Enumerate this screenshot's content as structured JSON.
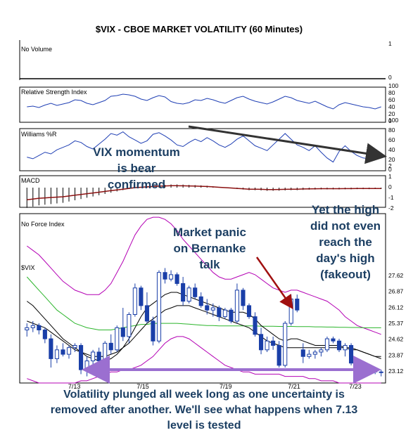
{
  "chart_data": {
    "type": "candlestick",
    "title": "$VIX - CBOE MARKET VOLATILITY (60 Minutes)",
    "panels": {
      "volume": {
        "label": "No Volume",
        "ticks": [
          "1",
          "0"
        ]
      },
      "rsi": {
        "label": "Relative Strength Index",
        "ticks": [
          "100",
          "80",
          "60",
          "40",
          "20",
          "0"
        ],
        "values": [
          40,
          42,
          38,
          45,
          50,
          44,
          48,
          52,
          60,
          58,
          50,
          46,
          52,
          58,
          70,
          72,
          76,
          74,
          70,
          62,
          58,
          66,
          72,
          68,
          55,
          50,
          48,
          52,
          60,
          58,
          64,
          60,
          54,
          50,
          58,
          66,
          70,
          62,
          56,
          52,
          48,
          54,
          62,
          70,
          66,
          58,
          54,
          50,
          56,
          48,
          40,
          34,
          46,
          52,
          48,
          44,
          40,
          38,
          34,
          40
        ]
      },
      "williams": {
        "label": "Williams %R",
        "ticks": [
          "100",
          "80",
          "60",
          "40",
          "20",
          "0"
        ],
        "values": [
          30,
          26,
          34,
          42,
          38,
          48,
          54,
          60,
          70,
          66,
          56,
          50,
          62,
          74,
          88,
          84,
          92,
          80,
          72,
          64,
          70,
          86,
          90,
          82,
          72,
          60,
          56,
          66,
          74,
          68,
          78,
          70,
          60,
          54,
          62,
          74,
          82,
          70,
          58,
          52,
          46,
          60,
          74,
          88,
          74,
          60,
          54,
          46,
          58,
          42,
          28,
          18,
          44,
          58,
          44,
          34,
          28,
          26,
          24,
          30
        ]
      },
      "macd": {
        "label": "MACD",
        "ticks": [
          "2",
          "1",
          "0",
          "-1",
          "-2"
        ],
        "hist": [
          -1.6,
          -1.5,
          -1.4,
          -1.35,
          -1.3,
          -1.25,
          -1.2,
          -1.1,
          -1.0,
          -0.9,
          -0.8,
          -0.7,
          -0.6,
          -0.5,
          -0.4,
          -0.3,
          -0.2,
          -0.1,
          0.0,
          0.05,
          0.1,
          0.15,
          0.2,
          0.22,
          0.25,
          0.25,
          0.24,
          0.22,
          0.2,
          0.18,
          0.15,
          0.1,
          0.05,
          0.0,
          -0.05,
          -0.1,
          -0.15,
          -0.2,
          -0.2,
          -0.22,
          -0.25,
          -0.25,
          -0.24,
          -0.22,
          -0.2,
          -0.2,
          -0.18,
          -0.16,
          -0.15,
          -0.14,
          -0.14,
          -0.14,
          -0.14,
          -0.13,
          -0.13,
          -0.12,
          -0.12,
          -0.12,
          -0.11,
          -0.11
        ]
      },
      "force": {
        "label": "No Force Index"
      }
    },
    "price": {
      "label": "$VIX",
      "ylim": [
        22.8,
        28.3
      ],
      "yticks": [
        "27.62",
        "26.87",
        "26.12",
        "25.37",
        "24.62",
        "23.87",
        "23.12"
      ],
      "xticks": [
        "7/13",
        "7/15",
        "7/19",
        "7/21",
        "7/23"
      ],
      "ohlc": [
        [
          25.2,
          25.5,
          24.9,
          25.3
        ],
        [
          25.3,
          25.6,
          25.1,
          25.4
        ],
        [
          25.4,
          25.5,
          25.0,
          25.2
        ],
        [
          25.2,
          25.3,
          24.6,
          24.8
        ],
        [
          24.8,
          25.0,
          23.5,
          23.9
        ],
        [
          23.9,
          24.5,
          23.7,
          24.3
        ],
        [
          24.3,
          24.6,
          24.0,
          24.1
        ],
        [
          24.1,
          24.5,
          23.9,
          24.4
        ],
        [
          24.4,
          24.6,
          24.2,
          24.5
        ],
        [
          24.5,
          24.6,
          23.2,
          23.4
        ],
        [
          23.4,
          24.0,
          23.1,
          23.8
        ],
        [
          23.8,
          24.3,
          23.6,
          24.2
        ],
        [
          24.2,
          24.4,
          23.6,
          23.8
        ],
        [
          23.8,
          24.7,
          23.7,
          24.6
        ],
        [
          24.6,
          25.0,
          24.1,
          24.3
        ],
        [
          24.3,
          25.4,
          24.2,
          25.3
        ],
        [
          25.3,
          26.2,
          24.7,
          24.9
        ],
        [
          24.9,
          26.0,
          24.6,
          25.9
        ],
        [
          25.9,
          27.3,
          25.8,
          27.1
        ],
        [
          27.1,
          27.2,
          26.1,
          26.3
        ],
        [
          26.3,
          26.9,
          25.5,
          25.6
        ],
        [
          25.6,
          25.8,
          24.5,
          24.7
        ],
        [
          24.7,
          27.9,
          24.6,
          27.8
        ],
        [
          27.8,
          28.0,
          27.3,
          27.5
        ],
        [
          27.5,
          27.9,
          27.4,
          27.7
        ],
        [
          27.7,
          27.8,
          27.2,
          27.3
        ],
        [
          27.3,
          27.6,
          26.3,
          26.5
        ],
        [
          26.5,
          27.2,
          26.4,
          27.1
        ],
        [
          27.1,
          27.3,
          26.6,
          26.7
        ],
        [
          26.7,
          26.9,
          26.2,
          26.3
        ],
        [
          26.3,
          26.6,
          25.9,
          26.1
        ],
        [
          26.1,
          26.4,
          25.8,
          26.2
        ],
        [
          26.2,
          26.3,
          25.6,
          25.8
        ],
        [
          25.8,
          26.2,
          25.7,
          26.1
        ],
        [
          26.1,
          26.2,
          25.5,
          25.6
        ],
        [
          25.6,
          27.3,
          25.5,
          27.0
        ],
        [
          27.0,
          27.1,
          26.1,
          26.3
        ],
        [
          26.3,
          26.4,
          25.7,
          25.8
        ],
        [
          25.8,
          26.0,
          24.9,
          25.0
        ],
        [
          25.0,
          25.3,
          24.1,
          24.3
        ],
        [
          24.3,
          24.9,
          24.2,
          24.7
        ],
        [
          24.7,
          24.9,
          24.3,
          24.5
        ],
        [
          24.5,
          24.7,
          23.5,
          23.6
        ],
        [
          23.6,
          25.6,
          23.5,
          25.5
        ],
        [
          25.5,
          26.8,
          25.4,
          26.6
        ],
        [
          26.6,
          26.8,
          26.0,
          26.1
        ],
        [
          24.3,
          24.6,
          23.7,
          24.0
        ],
        [
          24.0,
          24.3,
          23.9,
          24.1
        ],
        [
          24.1,
          24.3,
          23.9,
          24.2
        ],
        [
          24.2,
          24.4,
          24.0,
          24.3
        ],
        [
          24.3,
          24.9,
          24.2,
          24.8
        ],
        [
          24.8,
          24.9,
          24.6,
          24.7
        ],
        [
          24.7,
          24.8,
          24.2,
          24.3
        ],
        [
          24.3,
          24.6,
          24.0,
          24.5
        ],
        [
          24.5,
          24.6,
          23.6,
          23.7
        ],
        [
          23.7,
          23.8,
          23.2,
          23.3
        ],
        [
          23.3,
          23.4,
          23.1,
          23.3
        ],
        [
          23.3,
          23.5,
          23.2,
          23.4
        ],
        [
          23.4,
          23.5,
          23.2,
          23.3
        ],
        [
          23.3,
          23.4,
          23.1,
          23.3
        ]
      ],
      "sma20": [
        27.6,
        27.3,
        27.0,
        26.7,
        26.4,
        26.1,
        25.9,
        25.7,
        25.5,
        25.4,
        25.3,
        25.25,
        25.2,
        25.2,
        25.2,
        25.25,
        25.3,
        25.35,
        25.4,
        25.45,
        25.45,
        25.5,
        25.5,
        25.5,
        25.5,
        25.5,
        25.48,
        25.46,
        25.44,
        25.42,
        25.4,
        25.4,
        25.38,
        25.38,
        25.38,
        25.38,
        25.38,
        25.38,
        25.38,
        25.37,
        25.37,
        25.37,
        25.36,
        25.36,
        25.36,
        25.35,
        25.35,
        25.35,
        25.34,
        25.34,
        25.33,
        25.33,
        25.32,
        25.32,
        25.31,
        25.31,
        25.3,
        25.3,
        25.3,
        25.3
      ],
      "ema_fast": [
        26.5,
        26.3,
        26.0,
        25.7,
        25.4,
        25.1,
        24.8,
        24.6,
        24.4,
        24.2,
        24.0,
        23.9,
        23.8,
        23.8,
        23.9,
        24.1,
        24.4,
        24.8,
        25.3,
        25.8,
        26.2,
        26.4,
        26.6,
        26.8,
        26.9,
        26.9,
        26.8,
        26.7,
        26.6,
        26.5,
        26.4,
        26.3,
        26.2,
        26.1,
        26.0,
        26.0,
        26.0,
        25.9,
        25.7,
        25.4,
        25.2,
        25.0,
        24.8,
        24.7,
        24.8,
        24.8,
        24.7,
        24.6,
        24.5,
        24.5,
        24.5,
        24.5,
        24.5,
        24.4,
        24.4,
        24.3,
        24.2,
        24.1,
        24.0,
        24.0
      ],
      "ema_slow": [
        25.6,
        25.5,
        25.4,
        25.3,
        25.1,
        24.9,
        24.7,
        24.5,
        24.3,
        24.2,
        24.1,
        24.0,
        24.0,
        24.0,
        24.1,
        24.2,
        24.4,
        24.6,
        24.9,
        25.2,
        25.5,
        25.7,
        25.9,
        26.1,
        26.2,
        26.3,
        26.3,
        26.3,
        26.2,
        26.1,
        26.0,
        25.9,
        25.8,
        25.7,
        25.6,
        25.5,
        25.4,
        25.3,
        25.1,
        24.9,
        24.7,
        24.6,
        24.5,
        24.4,
        24.4,
        24.4,
        24.4,
        24.4,
        24.4,
        24.4,
        24.4,
        24.4,
        24.4,
        24.4,
        24.3,
        24.3,
        24.2,
        24.1,
        24.0,
        23.9
      ],
      "bb_upper": [
        29.0,
        28.8,
        28.6,
        28.3,
        28.0,
        27.7,
        27.4,
        27.2,
        27.0,
        26.9,
        26.8,
        26.8,
        26.8,
        27.0,
        27.3,
        27.8,
        28.3,
        28.9,
        29.5,
        29.9,
        30.2,
        30.3,
        30.3,
        30.2,
        30.0,
        29.7,
        29.3,
        29.0,
        28.7,
        28.4,
        28.1,
        27.8,
        27.6,
        27.5,
        27.5,
        27.6,
        27.7,
        27.8,
        27.7,
        27.5,
        27.3,
        27.1,
        27.0,
        26.9,
        27.0,
        27.0,
        26.9,
        26.8,
        26.7,
        26.6,
        26.5,
        26.3,
        26.1,
        25.8,
        25.6,
        25.4,
        25.3,
        25.2,
        25.1,
        25.0
      ],
      "bb_lower": [
        23.0,
        22.9,
        22.8,
        22.7,
        22.6,
        22.6,
        22.6,
        22.7,
        22.8,
        22.9,
        22.9,
        23.0,
        23.1,
        23.2,
        23.3,
        23.3,
        23.4,
        23.4,
        23.5,
        23.6,
        23.8,
        24.0,
        24.3,
        24.6,
        24.8,
        24.9,
        24.9,
        24.8,
        24.6,
        24.4,
        24.2,
        24.0,
        23.8,
        23.6,
        23.5,
        23.4,
        23.3,
        23.3,
        23.2,
        23.2,
        23.2,
        23.2,
        23.2,
        23.1,
        23.1,
        23.1,
        23.1,
        23.0,
        23.0,
        22.9,
        22.9,
        22.9,
        22.8,
        22.8,
        22.8,
        22.7,
        22.7,
        22.7,
        22.7,
        22.6
      ]
    },
    "annotations": {
      "momentum": [
        "VIX momentum",
        "is bear",
        "confirmed"
      ],
      "panic": [
        "Market panic",
        "on Bernanke",
        "talk"
      ],
      "high": [
        "Yet the high",
        "did not even",
        "reach the",
        "day's high",
        "(fakeout)"
      ],
      "footer": [
        "Volatility plunged all week long as one uncertainty is",
        "removed after another.  We'll see what happens when 7.13",
        "level is tested"
      ]
    },
    "colors": {
      "up": "#ffffff",
      "down": "#1a3fa8",
      "sma20": "#2bb52b",
      "bb": "#b400b4",
      "ema": "#000000",
      "indicator": "#1f3fb4",
      "macd_hist": "#8b1010",
      "annotation_text": "#1c3f63",
      "arrow_red": "#a01010",
      "arrow_dark": "#333333",
      "range_arrow": "#9b6fd0"
    }
  }
}
